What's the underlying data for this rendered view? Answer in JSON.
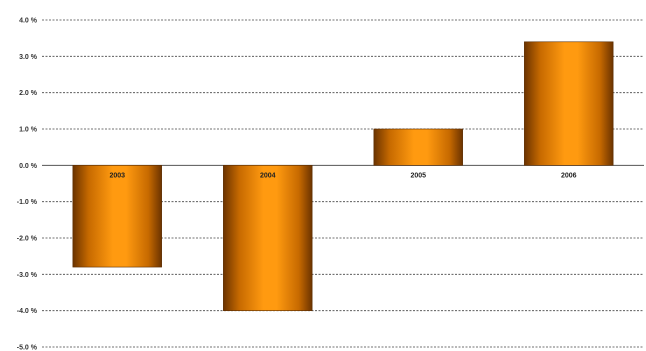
{
  "chart_data": {
    "type": "bar",
    "categories": [
      "2003",
      "2004",
      "2005",
      "2006"
    ],
    "values": [
      -2.8,
      -4.0,
      1.0,
      3.4
    ],
    "ylim": [
      -5.0,
      4.0
    ],
    "yticks": [
      4.0,
      3.0,
      2.0,
      1.0,
      0.0,
      -1.0,
      -2.0,
      -3.0,
      -4.0,
      -5.0
    ],
    "ytick_labels": [
      "4.0 %",
      "3.0 %",
      "2.0 %",
      "1.0 %",
      "0.0 %",
      "-1.0 %",
      "-2.0 %",
      "-3.0 %",
      "-4.0 %",
      "-5.0 %"
    ],
    "grid": true,
    "title": "",
    "xlabel": "",
    "ylabel": "",
    "colors": {
      "bar_center": "#ff9900",
      "bar_edge": "#7a3d00",
      "grid": "#444444"
    }
  }
}
